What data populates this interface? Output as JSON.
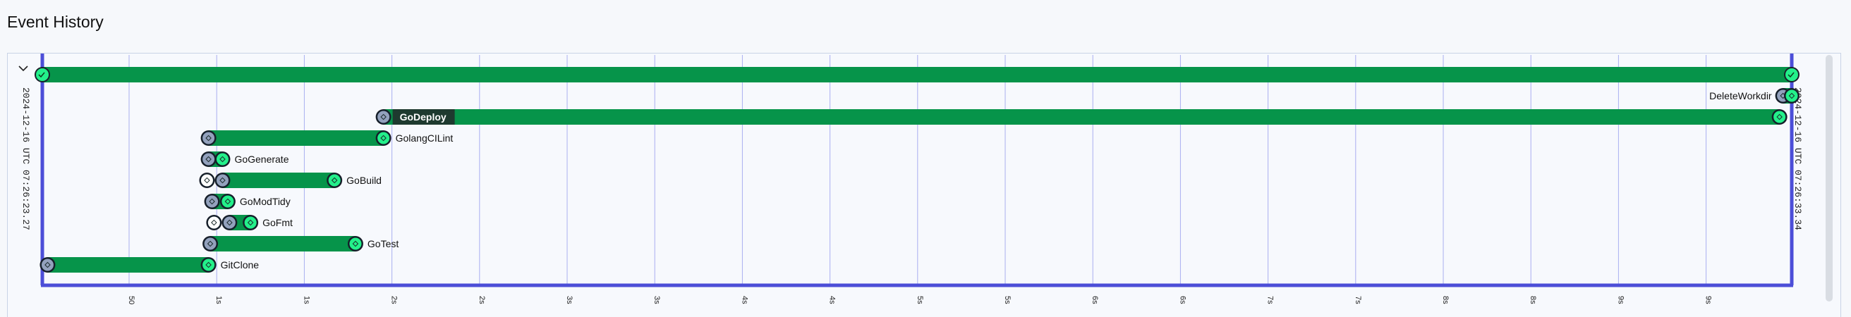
{
  "page": {
    "title": "Event History"
  },
  "timeline": {
    "start_label": "2024-12-16 UTC 07:26:23.27",
    "end_label": "2024-12-16 UTC 07:26:33.34",
    "axis": {
      "ticks": [
        "50",
        "1s",
        "1s",
        "2s",
        "2s",
        "3s",
        "3s",
        "4s",
        "4s",
        "5s",
        "5s",
        "6s",
        "6s",
        "7s",
        "7s",
        "8s",
        "8s",
        "9s",
        "9s"
      ]
    },
    "colors": {
      "bar": "#06944a",
      "frame": "#4c4ed8",
      "node_done": "#23f08a",
      "node_start": "#93a1bd",
      "grid": "#a9aef0"
    },
    "root": {
      "name": "",
      "start": 0,
      "end": 1,
      "marker": "double-check-icon"
    },
    "tasks": [
      {
        "name": "DeleteWorkdir",
        "start": 0.995,
        "end": 1.0,
        "label_side": "left",
        "label_style": "plain"
      },
      {
        "name": "GoDeploy",
        "start": 0.195,
        "end": 0.993,
        "label_side": "inside",
        "label_style": "tag"
      },
      {
        "name": "GolangCILint",
        "start": 0.095,
        "end": 0.195,
        "label_side": "right",
        "label_style": "plain"
      },
      {
        "name": "GoGenerate",
        "start": 0.095,
        "end": 0.103,
        "label_side": "right",
        "label_style": "plain"
      },
      {
        "name": "GoBuild",
        "start": 0.103,
        "end": 0.167,
        "label_side": "right",
        "label_style": "plain",
        "queued": true
      },
      {
        "name": "GoModTidy",
        "start": 0.097,
        "end": 0.106,
        "label_side": "right",
        "label_style": "plain"
      },
      {
        "name": "GoFmt",
        "start": 0.107,
        "end": 0.119,
        "label_side": "right",
        "label_style": "plain",
        "queued": true
      },
      {
        "name": "GoTest",
        "start": 0.096,
        "end": 0.179,
        "label_side": "right",
        "label_style": "plain"
      },
      {
        "name": "GitClone",
        "start": 0.003,
        "end": 0.095,
        "label_side": "right",
        "label_style": "plain"
      }
    ]
  }
}
